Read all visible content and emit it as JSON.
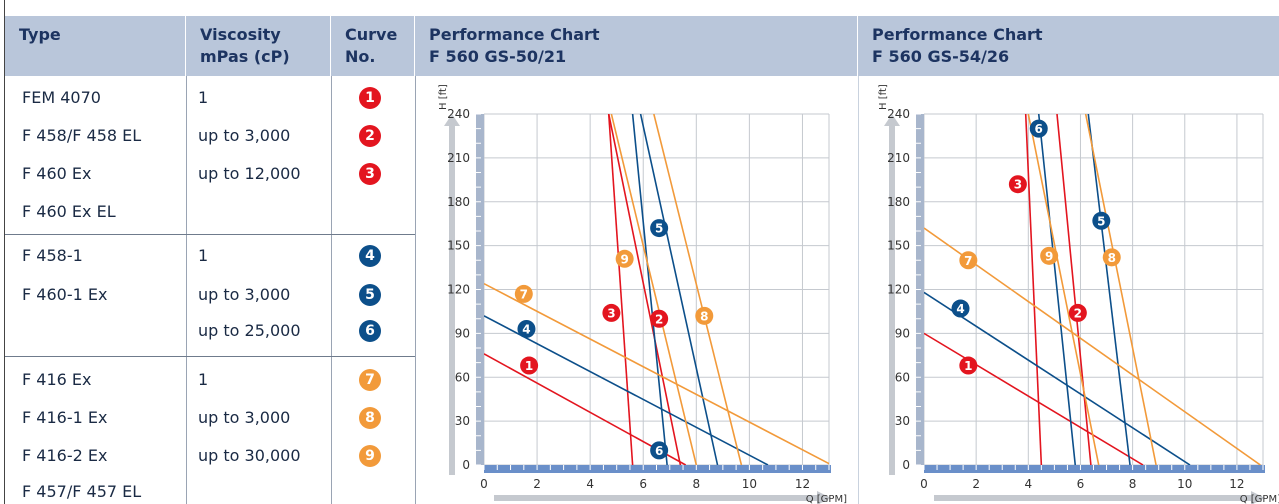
{
  "headers": {
    "type": "Type",
    "viscosity_line1": "Viscosity",
    "viscosity_line2": "mPas (cP)",
    "curve_line1": "Curve",
    "curve_line2": "No.",
    "chart1_line1": "Performance Chart",
    "chart1_line2": "F 560 GS-50/21",
    "chart2_line1": "Performance Chart",
    "chart2_line2": "F 560 GS-54/26"
  },
  "groups": [
    {
      "types": [
        "FEM 4070",
        "F 458/F 458 EL",
        "F 460 Ex",
        "F 460 Ex EL"
      ],
      "viscosities": [
        "1",
        "up to 3,000",
        "up to 12,000"
      ],
      "curves": [
        "1",
        "2",
        "3"
      ],
      "color": "#e3151f"
    },
    {
      "types": [
        "F 458-1",
        "F 460-1 Ex"
      ],
      "viscosities": [
        "1",
        "up to 3,000",
        "up to 25,000"
      ],
      "curves": [
        "4",
        "5",
        "6"
      ],
      "color": "#0c4f8a"
    },
    {
      "types": [
        "F 416 Ex",
        "F 416-1 Ex",
        "F 416-2 Ex",
        "F 457/F 457 EL"
      ],
      "viscosities": [
        "1",
        "up to 3,000",
        "up to 30,000"
      ],
      "curves": [
        "7",
        "8",
        "9"
      ],
      "color": "#f29a3a"
    }
  ],
  "colors": {
    "red": "#e3151f",
    "blue": "#0c4f8a",
    "orange": "#f29a3a",
    "header": "#b9c6da",
    "axis": "#a8b6cc",
    "tickbar": "#6a8fc9"
  },
  "chart_data": [
    {
      "type": "line",
      "title": "Performance Chart F 560 GS-50/21",
      "xlabel": "Q [GPM]",
      "ylabel": "H [ft]",
      "xlim": [
        0,
        13
      ],
      "ylim": [
        0,
        240
      ],
      "xticks": [
        "0",
        "2",
        "4",
        "6",
        "8",
        "10",
        "12"
      ],
      "yticks": [
        "0",
        "30",
        "60",
        "90",
        "120",
        "150",
        "180",
        "210",
        "240"
      ],
      "series": [
        {
          "name": "1",
          "color": "red",
          "points": [
            [
              0,
              76
            ],
            [
              7.6,
              0
            ]
          ],
          "label_at": [
            1.7,
            68
          ]
        },
        {
          "name": "2",
          "color": "red",
          "points": [
            [
              4.7,
              240
            ],
            [
              7.4,
              0
            ]
          ],
          "label_at": [
            6.6,
            100
          ]
        },
        {
          "name": "3",
          "color": "red",
          "points": [
            [
              4.7,
              240
            ],
            [
              5.6,
              0
            ]
          ],
          "label_at": [
            4.8,
            104
          ]
        },
        {
          "name": "4",
          "color": "blue",
          "points": [
            [
              0,
              102
            ],
            [
              10.7,
              0
            ]
          ],
          "label_at": [
            1.6,
            93
          ]
        },
        {
          "name": "5",
          "color": "blue",
          "points": [
            [
              5.9,
              240
            ],
            [
              8.8,
              0
            ]
          ],
          "label_at": [
            6.6,
            162
          ]
        },
        {
          "name": "6",
          "color": "blue",
          "points": [
            [
              5.6,
              240
            ],
            [
              6.9,
              0
            ]
          ],
          "label_at": [
            6.6,
            10
          ]
        },
        {
          "name": "7",
          "color": "orange",
          "points": [
            [
              0,
              124
            ],
            [
              13.1,
              0
            ]
          ],
          "label_at": [
            1.5,
            117
          ]
        },
        {
          "name": "8",
          "color": "orange",
          "points": [
            [
              6.4,
              240
            ],
            [
              9.7,
              0
            ]
          ],
          "label_at": [
            8.3,
            102
          ]
        },
        {
          "name": "9",
          "color": "orange",
          "points": [
            [
              4.8,
              240
            ],
            [
              8.0,
              0
            ]
          ],
          "label_at": [
            5.3,
            141
          ]
        }
      ]
    },
    {
      "type": "line",
      "title": "Performance Chart F 560 GS-54/26",
      "xlabel": "Q [GPM]",
      "ylabel": "H [ft]",
      "xlim": [
        0,
        13
      ],
      "ylim": [
        0,
        240
      ],
      "xticks": [
        "0",
        "2",
        "4",
        "6",
        "8",
        "10",
        "12"
      ],
      "yticks": [
        "0",
        "30",
        "60",
        "90",
        "120",
        "150",
        "180",
        "210",
        "240"
      ],
      "series": [
        {
          "name": "1",
          "color": "red",
          "points": [
            [
              0,
              90
            ],
            [
              8.4,
              0
            ]
          ],
          "label_at": [
            1.7,
            68
          ]
        },
        {
          "name": "2",
          "color": "red",
          "points": [
            [
              5.1,
              240
            ],
            [
              6.4,
              0
            ]
          ],
          "label_at": [
            5.9,
            104
          ]
        },
        {
          "name": "3",
          "color": "red",
          "points": [
            [
              3.9,
              240
            ],
            [
              4.5,
              0
            ]
          ],
          "label_at": [
            3.6,
            192
          ]
        },
        {
          "name": "4",
          "color": "blue",
          "points": [
            [
              0,
              118
            ],
            [
              10.2,
              0
            ]
          ],
          "label_at": [
            1.4,
            107
          ]
        },
        {
          "name": "5",
          "color": "blue",
          "points": [
            [
              6.3,
              240
            ],
            [
              7.9,
              0
            ]
          ],
          "label_at": [
            6.8,
            167
          ]
        },
        {
          "name": "6",
          "color": "blue",
          "points": [
            [
              4.4,
              240
            ],
            [
              5.8,
              0
            ]
          ],
          "label_at": [
            4.4,
            230
          ]
        },
        {
          "name": "7",
          "color": "orange",
          "points": [
            [
              0,
              162
            ],
            [
              12.9,
              0
            ]
          ],
          "label_at": [
            1.7,
            140
          ]
        },
        {
          "name": "8",
          "color": "orange",
          "points": [
            [
              6.2,
              240
            ],
            [
              8.9,
              0
            ]
          ],
          "label_at": [
            7.2,
            142
          ]
        },
        {
          "name": "9",
          "color": "orange",
          "points": [
            [
              4.0,
              240
            ],
            [
              6.7,
              0
            ]
          ],
          "label_at": [
            4.8,
            143
          ]
        }
      ]
    }
  ]
}
